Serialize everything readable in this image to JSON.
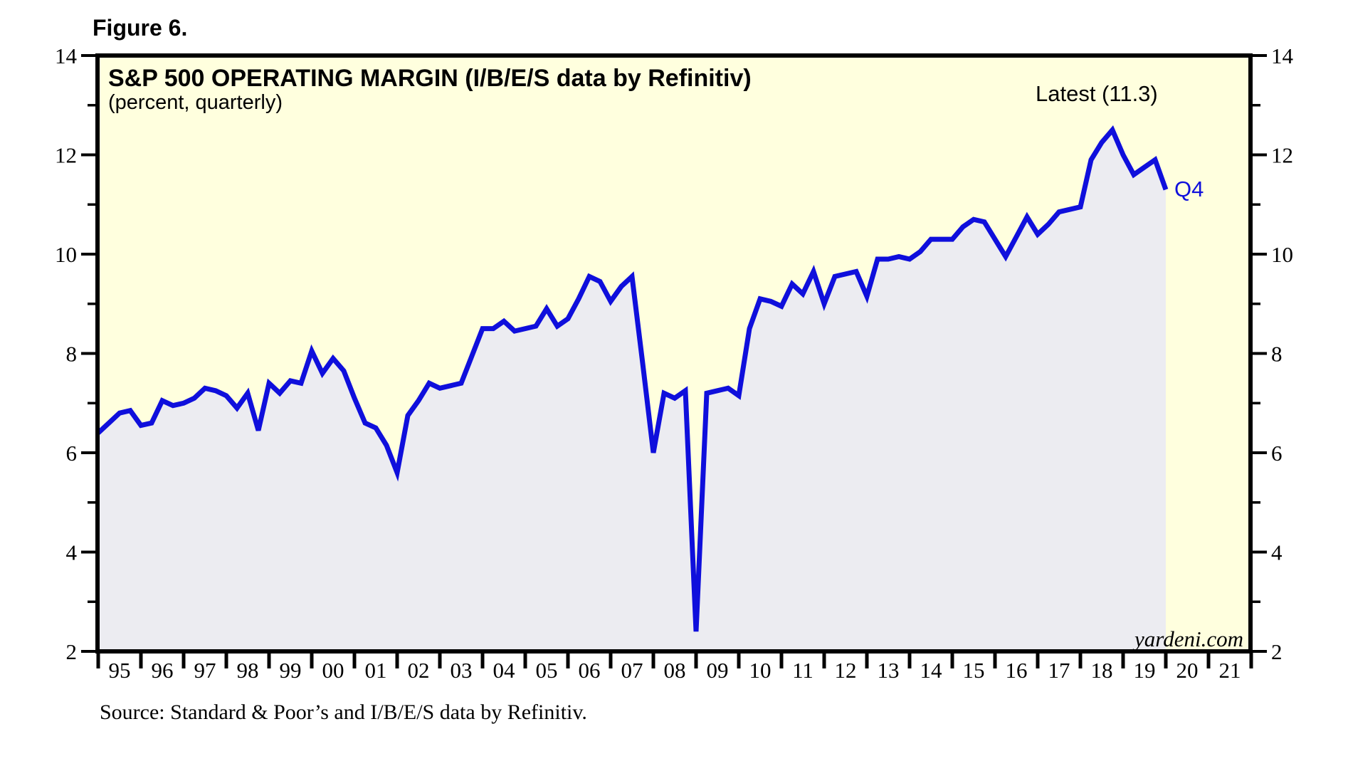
{
  "figure_label": "Figure 6.",
  "chart": {
    "title": "S&P 500 OPERATING MARGIN (I/B/E/S data by Refinitiv)",
    "subtitle": "(percent, quarterly)",
    "latest_label": "Latest (11.3)",
    "end_label": "Q4",
    "watermark": "yardeni.com",
    "source": "Source: Standard & Poor’s and I/B/E/S data by Refinitiv."
  },
  "chart_data": {
    "type": "line",
    "title": "S&P 500 OPERATING MARGIN (I/B/E/S data by Refinitiv)",
    "subtitle": "(percent, quarterly)",
    "unit": "percent",
    "frequency": "quarterly",
    "start_quarter": "1994Q4",
    "end_quarter": "2019Q4",
    "latest_value": 11.3,
    "series": [
      {
        "name": "S&P 500 operating margin (%)",
        "values": [
          6.4,
          6.6,
          6.8,
          6.85,
          6.55,
          6.6,
          7.05,
          6.95,
          7.0,
          7.1,
          7.3,
          7.25,
          7.15,
          6.9,
          7.2,
          6.45,
          7.4,
          7.2,
          7.45,
          7.4,
          8.05,
          7.6,
          7.9,
          7.65,
          7.1,
          6.6,
          6.5,
          6.15,
          5.6,
          6.75,
          7.05,
          7.4,
          7.3,
          7.35,
          7.4,
          7.95,
          8.5,
          8.5,
          8.65,
          8.45,
          8.5,
          8.55,
          8.9,
          8.55,
          8.7,
          9.1,
          9.55,
          9.45,
          9.05,
          9.35,
          9.55,
          7.8,
          6.0,
          7.2,
          7.1,
          7.25,
          2.4,
          7.2,
          7.25,
          7.3,
          7.15,
          8.5,
          9.1,
          9.05,
          8.95,
          9.4,
          9.2,
          9.65,
          9.0,
          9.55,
          9.6,
          9.65,
          9.15,
          9.9,
          9.9,
          9.95,
          9.9,
          10.05,
          10.3,
          10.3,
          10.3,
          10.55,
          10.7,
          10.65,
          10.3,
          9.95,
          10.35,
          10.75,
          10.4,
          10.6,
          10.85,
          10.9,
          10.95,
          11.9,
          12.25,
          12.5,
          12.0,
          11.6,
          11.75,
          11.9,
          11.3
        ]
      }
    ],
    "ylim": [
      2,
      14
    ],
    "y_major_ticks": [
      2,
      4,
      6,
      8,
      10,
      12,
      14
    ],
    "y_minor_ticks": [
      3,
      5,
      7,
      9,
      11,
      13
    ],
    "x_range_years": [
      1995,
      2022
    ],
    "x_tick_labels": [
      "95",
      "96",
      "97",
      "98",
      "99",
      "00",
      "01",
      "02",
      "03",
      "04",
      "05",
      "06",
      "07",
      "08",
      "09",
      "10",
      "11",
      "12",
      "13",
      "14",
      "15",
      "16",
      "17",
      "18",
      "19",
      "20",
      "21"
    ],
    "grid": "off",
    "legend": "none",
    "colors": {
      "line": "#0F0FDC",
      "area_fill": "#ECECF1",
      "plot_background": "#FFFFDE",
      "border": "#000000",
      "annotation_blue": "#0F0FDC"
    }
  }
}
